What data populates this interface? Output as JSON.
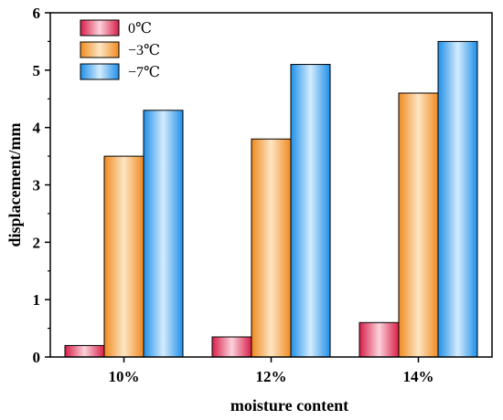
{
  "chart_data": {
    "type": "bar",
    "categories": [
      "10%",
      "12%",
      "14%"
    ],
    "series": [
      {
        "name": "0℃",
        "values": [
          0.2,
          0.35,
          0.6
        ],
        "color": "#e8385a"
      },
      {
        "name": "−3℃",
        "values": [
          3.5,
          3.8,
          4.6
        ],
        "color": "#f5a040"
      },
      {
        "name": "−7℃",
        "values": [
          4.3,
          5.1,
          5.5
        ],
        "color": "#3aa0f0"
      }
    ],
    "title": "",
    "xlabel": "moisture content",
    "ylabel": "displacement/mm",
    "ylim": [
      0,
      6
    ],
    "yticks": [
      "0",
      "1",
      "2",
      "3",
      "4",
      "5",
      "6"
    ],
    "grid": false,
    "legend_position": "top-left"
  }
}
